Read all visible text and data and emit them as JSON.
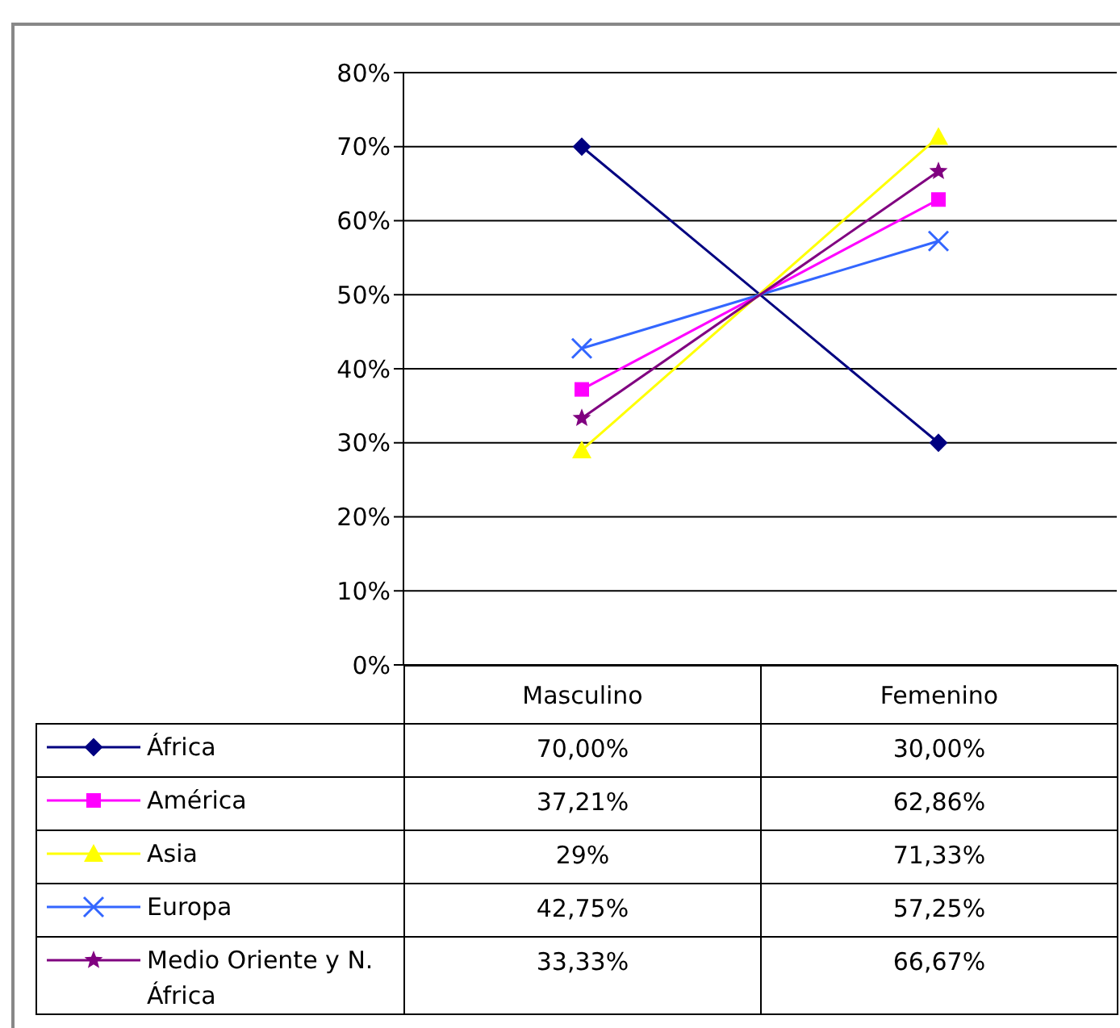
{
  "chart_data": {
    "type": "line",
    "categories": [
      "Masculino",
      "Femenino"
    ],
    "series": [
      {
        "name": "África",
        "color": "#000080",
        "marker": "diamond",
        "values": [
          70,
          30
        ],
        "value_labels": [
          "70,00%",
          "30,00%"
        ]
      },
      {
        "name": "América",
        "color": "#ff00ff",
        "marker": "square",
        "values": [
          37.21,
          62.86
        ],
        "value_labels": [
          "37,21%",
          "62,86%"
        ]
      },
      {
        "name": "Asia",
        "color": "#ffff00",
        "marker": "triangle",
        "values": [
          29,
          71.33
        ],
        "value_labels": [
          "29%",
          "71,33%"
        ]
      },
      {
        "name": "Europa",
        "color": "#3366ff",
        "marker": "cross",
        "values": [
          42.75,
          57.25
        ],
        "value_labels": [
          "42,75%",
          "57,25%"
        ]
      },
      {
        "name": "Medio Oriente y N. África",
        "color": "#800080",
        "marker": "star",
        "values": [
          33.33,
          66.67
        ],
        "value_labels": [
          "33,33%",
          "66,67%"
        ]
      }
    ],
    "ylim": [
      0,
      80
    ],
    "yticks": [
      {
        "value": 0,
        "label": "0%"
      },
      {
        "value": 10,
        "label": "10%"
      },
      {
        "value": 20,
        "label": "20%"
      },
      {
        "value": 30,
        "label": "30%"
      },
      {
        "value": 40,
        "label": "40%"
      },
      {
        "value": 50,
        "label": "50%"
      },
      {
        "value": 60,
        "label": "60%"
      },
      {
        "value": 70,
        "label": "70%"
      },
      {
        "value": 80,
        "label": "80%"
      }
    ],
    "grid": "y",
    "legend": "bottom"
  }
}
